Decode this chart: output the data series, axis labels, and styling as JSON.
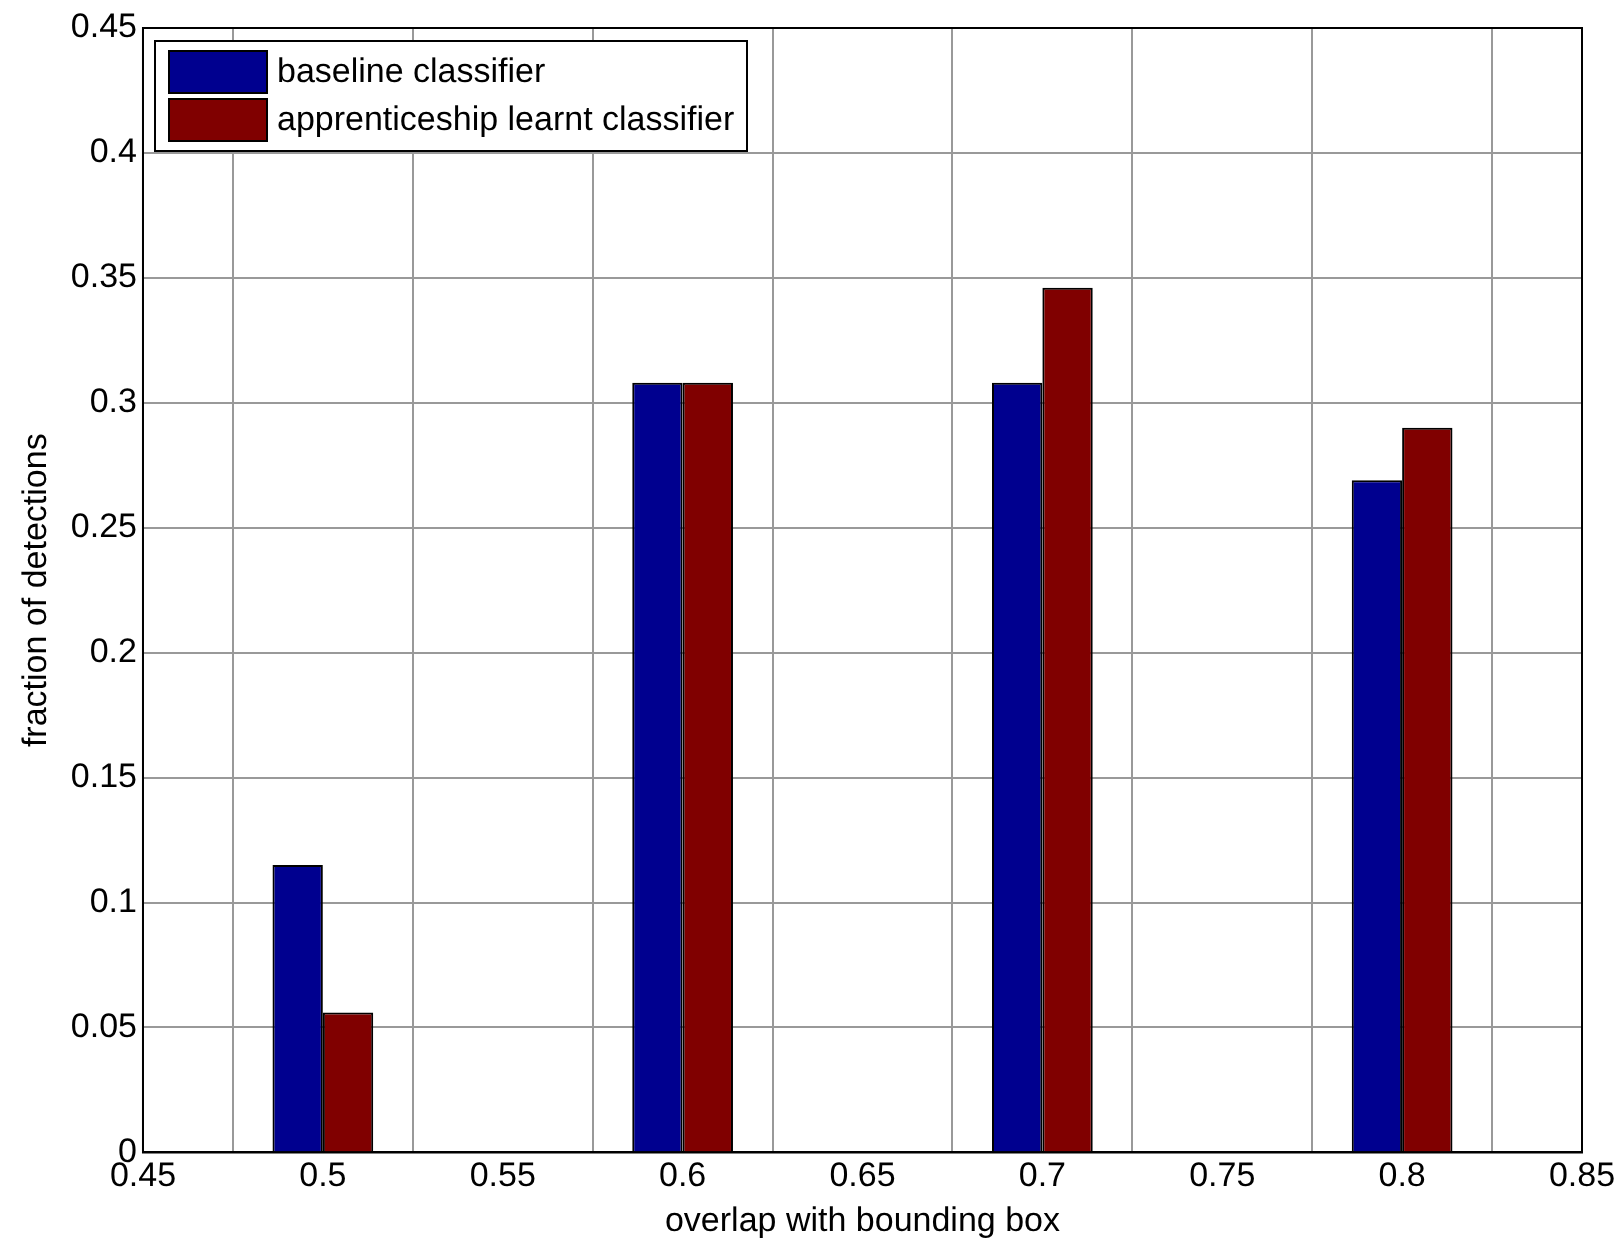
{
  "chart_data": {
    "type": "bar",
    "xlabel": "overlap with bounding box",
    "ylabel": "fraction of detections",
    "x": [
      0.5,
      0.6,
      0.7,
      0.8
    ],
    "series": [
      {
        "name": "baseline classifier",
        "color": "#00008f",
        "values": [
          0.115,
          0.308,
          0.308,
          0.269
        ]
      },
      {
        "name": "apprenticeship learnt classifier",
        "color": "#800000",
        "values": [
          0.056,
          0.308,
          0.346,
          0.29
        ]
      }
    ],
    "xlim": [
      0.45,
      0.85
    ],
    "xticks": [
      0.45,
      0.5,
      0.55,
      0.6,
      0.65,
      0.7,
      0.75,
      0.8,
      0.85
    ],
    "ylim": [
      0,
      0.45
    ],
    "yticks": [
      0,
      0.05,
      0.1,
      0.15,
      0.2,
      0.25,
      0.3,
      0.35,
      0.4,
      0.45
    ],
    "grid": true,
    "legend": "top left"
  }
}
